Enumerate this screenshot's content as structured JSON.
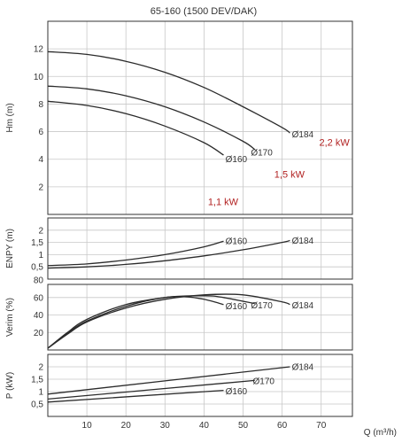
{
  "chart_data": {
    "type": "line",
    "title": "65-160 (1500 DEV/DAK)",
    "xlabel": "Q (m³/h)",
    "x_ticks": [
      10,
      20,
      30,
      40,
      50,
      60,
      70
    ],
    "xlim": [
      0,
      78
    ],
    "grid": true,
    "panels": [
      {
        "id": "hm",
        "ylabel": "Hm (m)",
        "ylim": [
          0,
          14
        ],
        "y_ticks": [
          "2",
          "4",
          "6",
          "8",
          "10",
          "12"
        ],
        "y_values": [
          2,
          4,
          6,
          8,
          10,
          12
        ],
        "series": [
          {
            "name": "Ø184",
            "x": [
              0,
              10,
              20,
              30,
              40,
              50,
              60,
              62
            ],
            "y": [
              11.8,
              11.6,
              11.1,
              10.3,
              9.2,
              7.8,
              6.3,
              5.9
            ]
          },
          {
            "name": "Ø170",
            "x": [
              0,
              10,
              20,
              30,
              40,
              50,
              53
            ],
            "y": [
              9.3,
              9.1,
              8.6,
              7.8,
              6.7,
              5.3,
              4.7
            ]
          },
          {
            "name": "Ø160",
            "x": [
              0,
              10,
              20,
              30,
              40,
              45
            ],
            "y": [
              8.2,
              7.9,
              7.3,
              6.4,
              5.2,
              4.3
            ]
          }
        ]
      },
      {
        "id": "enpy",
        "ylabel": "ENPY (m)",
        "ylim": [
          0,
          2.5
        ],
        "y_ticks": [
          "0,5",
          "1",
          "1,5",
          "2"
        ],
        "y_values": [
          0.5,
          1,
          1.5,
          2
        ],
        "series": [
          {
            "name": "Ø160",
            "x": [
              0,
              10,
              20,
              30,
              40,
              45
            ],
            "y": [
              0.55,
              0.62,
              0.78,
              1.0,
              1.32,
              1.55
            ]
          },
          {
            "name": "Ø184",
            "x": [
              0,
              10,
              20,
              30,
              40,
              50,
              60,
              62
            ],
            "y": [
              0.45,
              0.5,
              0.6,
              0.75,
              0.95,
              1.2,
              1.5,
              1.58
            ]
          }
        ]
      },
      {
        "id": "verim",
        "ylabel": "Verim (%)",
        "ylim": [
          0,
          75
        ],
        "y_ticks": [
          "20",
          "40",
          "60",
          "80"
        ],
        "y_values": [
          20,
          40,
          60,
          80
        ],
        "series": [
          {
            "name": "Ø160",
            "x": [
              0,
              5,
              10,
              20,
              30,
              35,
              40,
              45
            ],
            "y": [
              2,
              20,
              35,
              52,
              60,
              61,
              58,
              52
            ]
          },
          {
            "name": "Ø170",
            "x": [
              0,
              5,
              10,
              20,
              30,
              40,
              45,
              53
            ],
            "y": [
              2,
              19,
              33,
              50,
              60,
              62,
              60,
              53
            ]
          },
          {
            "name": "Ø184",
            "x": [
              0,
              5,
              10,
              20,
              30,
              40,
              50,
              60,
              62
            ],
            "y": [
              2,
              18,
              32,
              48,
              58,
              63,
              63,
              55,
              52
            ]
          }
        ]
      },
      {
        "id": "p",
        "ylabel": "P (kW)",
        "ylim": [
          0,
          2.5
        ],
        "y_ticks": [
          "0,5",
          "1",
          "1,5",
          "2"
        ],
        "y_values": [
          0.5,
          1,
          1.5,
          2
        ],
        "series": [
          {
            "name": "Ø184",
            "x": [
              0,
              62
            ],
            "y": [
              0.9,
              2.0
            ]
          },
          {
            "name": "Ø170",
            "x": [
              0,
              53
            ],
            "y": [
              0.7,
              1.45
            ]
          },
          {
            "name": "Ø160",
            "x": [
              0,
              45
            ],
            "y": [
              0.58,
              1.05
            ]
          }
        ]
      }
    ],
    "annotations": {
      "hm": [
        {
          "text": "Ø184",
          "x": 62.5,
          "y": 5.8
        },
        {
          "text": "Ø170",
          "x": 52,
          "y": 4.5
        },
        {
          "text": "Ø160",
          "x": 45.5,
          "y": 4.0
        },
        {
          "text": "2,2 kW",
          "x": 69.5,
          "y": 5.2,
          "power": true
        },
        {
          "text": "1,5 kW",
          "x": 58,
          "y": 2.9,
          "power": true
        },
        {
          "text": "1,1 kW",
          "x": 41,
          "y": 0.9,
          "power": true
        }
      ],
      "enpy": [
        {
          "text": "Ø160",
          "x": 45.5,
          "y": 1.55
        },
        {
          "text": "Ø184",
          "x": 62.5,
          "y": 1.58
        }
      ],
      "verim": [
        {
          "text": "Ø160",
          "x": 45.5,
          "y": 50
        },
        {
          "text": "Ø170",
          "x": 52,
          "y": 51
        },
        {
          "text": "Ø184",
          "x": 62.5,
          "y": 51
        }
      ],
      "p": [
        {
          "text": "Ø184",
          "x": 62.5,
          "y": 2.0
        },
        {
          "text": "Ø170",
          "x": 52.5,
          "y": 1.42
        },
        {
          "text": "Ø160",
          "x": 45.5,
          "y": 1.02
        }
      ]
    }
  }
}
